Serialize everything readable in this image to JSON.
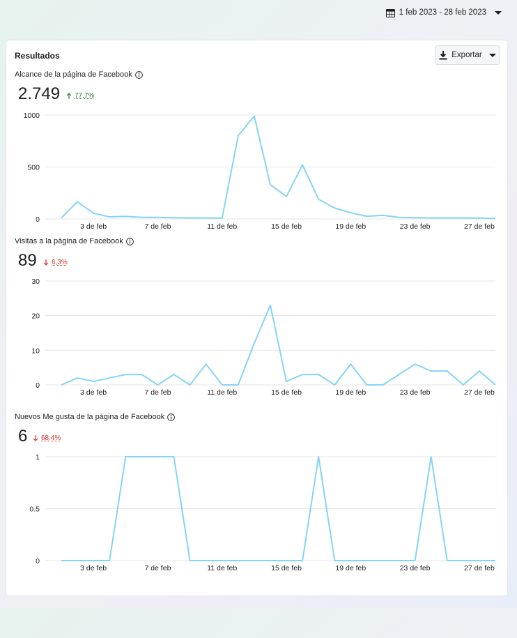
{
  "date_range": {
    "label": "1 feb 2023 - 28 feb 2023",
    "icon": "calendar-icon"
  },
  "card": {
    "title": "Resultados",
    "export_label": "Exportar"
  },
  "colors": {
    "line": "#84d4f7",
    "grid": "#e5e5e5",
    "up": "#2a7d3f",
    "down": "#d93025"
  },
  "metrics": [
    {
      "label": "Alcance de la página de Facebook",
      "value": "2.749",
      "delta": "77,7%",
      "direction": "up"
    },
    {
      "label": "Visitas a la página de Facebook",
      "value": "89",
      "delta": "6,3%",
      "direction": "down"
    },
    {
      "label": "Nuevos Me gusta de la página de Facebook",
      "value": "6",
      "delta": "68,4%",
      "direction": "down"
    }
  ],
  "chart_data": [
    {
      "type": "line",
      "x": [
        1,
        2,
        3,
        4,
        5,
        6,
        7,
        8,
        9,
        10,
        11,
        12,
        13,
        14,
        15,
        16,
        17,
        18,
        19,
        20,
        21,
        22,
        23,
        24,
        25,
        26,
        27,
        28
      ],
      "x_tick_labels": [
        "3 de feb",
        "7 de feb",
        "11 de feb",
        "15 de feb",
        "19 de feb",
        "23 de feb",
        "27 de feb"
      ],
      "x_tick_positions": [
        3,
        7,
        11,
        15,
        19,
        23,
        27
      ],
      "y_ticks": [
        0,
        500,
        1000
      ],
      "y_tick_labels": [
        "0",
        "500",
        "1000"
      ],
      "ylim": [
        0,
        1000
      ],
      "series": [
        {
          "values": [
            10,
            165,
            55,
            20,
            25,
            15,
            15,
            12,
            10,
            10,
            8,
            800,
            990,
            330,
            215,
            520,
            190,
            105,
            60,
            25,
            35,
            15,
            12,
            10,
            10,
            10,
            8,
            5
          ]
        }
      ]
    },
    {
      "type": "line",
      "x": [
        1,
        2,
        3,
        4,
        5,
        6,
        7,
        8,
        9,
        10,
        11,
        12,
        13,
        14,
        15,
        16,
        17,
        18,
        19,
        20,
        21,
        22,
        23,
        24,
        25,
        26,
        27,
        28
      ],
      "x_tick_labels": [
        "3 de feb",
        "7 de feb",
        "11 de feb",
        "15 de feb",
        "19 de feb",
        "23 de feb",
        "27 de feb"
      ],
      "x_tick_positions": [
        3,
        7,
        11,
        15,
        19,
        23,
        27
      ],
      "y_ticks": [
        0,
        10,
        20,
        30
      ],
      "y_tick_labels": [
        "0",
        "10",
        "20",
        "30"
      ],
      "ylim": [
        0,
        30
      ],
      "series": [
        {
          "values": [
            0,
            2,
            1,
            2,
            3,
            3,
            0,
            3,
            0,
            6,
            0,
            0,
            12,
            23,
            1,
            3,
            3,
            0,
            6,
            0,
            0,
            3,
            6,
            4,
            4,
            0,
            4,
            0
          ]
        }
      ]
    },
    {
      "type": "line",
      "x": [
        1,
        2,
        3,
        4,
        5,
        6,
        7,
        8,
        9,
        10,
        11,
        12,
        13,
        14,
        15,
        16,
        17,
        18,
        19,
        20,
        21,
        22,
        23,
        24,
        25,
        26,
        27,
        28
      ],
      "x_tick_labels": [
        "3 de feb",
        "7 de feb",
        "11 de feb",
        "15 de feb",
        "19 de feb",
        "23 de feb",
        "27 de feb"
      ],
      "x_tick_positions": [
        3,
        7,
        11,
        15,
        19,
        23,
        27
      ],
      "y_ticks": [
        0,
        0.5,
        1
      ],
      "y_tick_labels": [
        "0",
        "0.5",
        "1"
      ],
      "ylim": [
        0,
        1
      ],
      "series": [
        {
          "values": [
            0,
            0,
            0,
            0,
            1,
            1,
            1,
            1,
            0,
            0,
            0,
            0,
            0,
            0,
            0,
            0,
            1,
            0,
            0,
            0,
            0,
            0,
            0,
            1,
            0,
            0,
            0,
            0
          ]
        }
      ]
    }
  ]
}
